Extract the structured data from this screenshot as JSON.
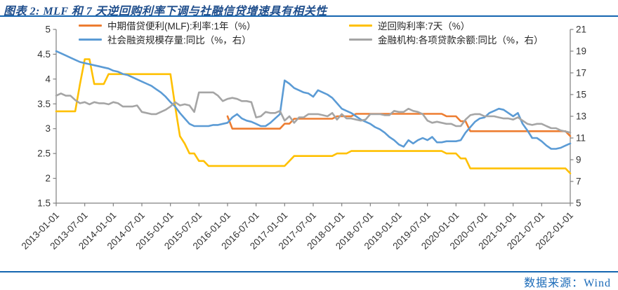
{
  "title": "图表 2: MLF 和 7 天逆回购利率下调与社融信贷增速具有相关性",
  "source": "数据来源：Wind",
  "colors": {
    "title_blue": "#1f4e8c",
    "rule_blue": "#1565b0",
    "source_blue": "#1a6ab8",
    "axis_line": "#808080",
    "axis_text": "#333333"
  },
  "chart_data": {
    "type": "line",
    "title": "图表 2: MLF 和 7 天逆回购利率下调与社融信贷增速具有相关性",
    "legend_position": "top",
    "grid": false,
    "x_start": "2013-01-01",
    "x_end": "2022-01-01",
    "x_months_total": 108,
    "x_tick_labels": [
      "2013-01-01",
      "2013-07-01",
      "2014-01-01",
      "2014-07-01",
      "2015-01-01",
      "2015-07-01",
      "2016-01-01",
      "2016-07-01",
      "2017-01-01",
      "2017-07-01",
      "2018-01-01",
      "2018-07-01",
      "2019-01-01",
      "2019-07-01",
      "2020-01-01",
      "2020-07-01",
      "2021-01-01",
      "2021-07-01",
      "2022-01-01"
    ],
    "left_axis": {
      "min": 1.5,
      "max": 5,
      "step": 0.5,
      "tick_labels": [
        "5",
        "4.5",
        "4",
        "3.5",
        "3",
        "2.5",
        "2",
        "1.5"
      ]
    },
    "right_axis": {
      "min": 5,
      "max": 21,
      "step": 2,
      "tick_labels": [
        "21",
        "19",
        "17",
        "15",
        "13",
        "11",
        "9",
        "7",
        "5"
      ]
    },
    "series": [
      {
        "name": "中期借贷便利(MLF):利率:1年（%）",
        "axis": "left",
        "color": "#ED7D31",
        "start_month": 36,
        "values": [
          3.25,
          3.0,
          3.0,
          3.0,
          3.0,
          3.0,
          3.0,
          3.0,
          3.0,
          3.0,
          3.0,
          3.0,
          3.1,
          3.1,
          3.2,
          3.2,
          3.2,
          3.2,
          3.2,
          3.2,
          3.2,
          3.2,
          3.2,
          3.25,
          3.25,
          3.25,
          3.25,
          3.3,
          3.3,
          3.3,
          3.3,
          3.3,
          3.3,
          3.3,
          3.3,
          3.3,
          3.3,
          3.3,
          3.3,
          3.3,
          3.3,
          3.3,
          3.3,
          3.3,
          3.3,
          3.3,
          3.25,
          3.25,
          3.25,
          3.15,
          3.15,
          2.95,
          2.95,
          2.95,
          2.95,
          2.95,
          2.95,
          2.95,
          2.95,
          2.95,
          2.95,
          2.95,
          2.95,
          2.95,
          2.95,
          2.95,
          2.95,
          2.95,
          2.95,
          2.95,
          2.95,
          2.95,
          2.85
        ]
      },
      {
        "name": "逆回购利率:7天（%）",
        "axis": "left",
        "color": "#FFC000",
        "start_month": 0,
        "values": [
          3.35,
          3.35,
          3.35,
          3.35,
          3.35,
          3.9,
          4.4,
          4.4,
          3.9,
          3.9,
          3.9,
          4.1,
          4.1,
          4.1,
          4.1,
          4.1,
          4.1,
          4.1,
          4.1,
          4.1,
          4.1,
          4.1,
          4.1,
          4.1,
          4.1,
          3.45,
          2.85,
          2.7,
          2.5,
          2.5,
          2.35,
          2.35,
          2.25,
          2.25,
          2.25,
          2.25,
          2.25,
          2.25,
          2.25,
          2.25,
          2.25,
          2.25,
          2.25,
          2.25,
          2.25,
          2.25,
          2.25,
          2.25,
          2.25,
          2.35,
          2.45,
          2.45,
          2.45,
          2.45,
          2.45,
          2.45,
          2.45,
          2.45,
          2.45,
          2.5,
          2.5,
          2.5,
          2.55,
          2.55,
          2.55,
          2.55,
          2.55,
          2.55,
          2.55,
          2.55,
          2.55,
          2.55,
          2.55,
          2.55,
          2.55,
          2.55,
          2.55,
          2.55,
          2.55,
          2.55,
          2.55,
          2.55,
          2.5,
          2.5,
          2.5,
          2.4,
          2.4,
          2.2,
          2.2,
          2.2,
          2.2,
          2.2,
          2.2,
          2.2,
          2.2,
          2.2,
          2.2,
          2.2,
          2.2,
          2.2,
          2.2,
          2.2,
          2.2,
          2.2,
          2.2,
          2.2,
          2.2,
          2.2,
          2.1
        ]
      },
      {
        "name": "社会融资规模存量:同比（%，右）",
        "axis": "right",
        "color": "#5B9BD5",
        "start_month": 0,
        "values": [
          19.0,
          18.8,
          18.6,
          18.4,
          18.2,
          18.0,
          17.9,
          17.8,
          17.7,
          17.6,
          17.5,
          17.4,
          17.2,
          17.1,
          16.9,
          16.8,
          16.6,
          16.4,
          16.2,
          16.0,
          15.8,
          15.5,
          15.2,
          14.8,
          14.3,
          13.9,
          13.3,
          12.8,
          12.3,
          12.1,
          12.1,
          12.1,
          12.1,
          12.2,
          12.2,
          12.3,
          12.4,
          12.9,
          13.2,
          12.8,
          12.6,
          12.5,
          12.3,
          12.1,
          12.1,
          12.4,
          12.8,
          13.2,
          16.3,
          16.0,
          15.6,
          15.4,
          15.2,
          15.1,
          14.8,
          15.4,
          15.2,
          15.0,
          14.7,
          14.2,
          13.7,
          13.5,
          13.3,
          13.0,
          12.7,
          12.5,
          12.3,
          12.0,
          11.8,
          11.5,
          11.1,
          10.8,
          10.4,
          10.2,
          10.8,
          10.5,
          10.8,
          11.0,
          10.8,
          11.1,
          10.6,
          10.6,
          10.7,
          10.7,
          10.7,
          10.8,
          11.5,
          12.0,
          12.5,
          12.8,
          12.9,
          13.3,
          13.5,
          13.7,
          13.6,
          13.3,
          13.0,
          13.3,
          12.3,
          11.7,
          11.0,
          11.0,
          10.7,
          10.3,
          10.0,
          10.0,
          10.1,
          10.3,
          10.5
        ]
      },
      {
        "name": "金融机构:各项贷款余额:同比（%，右）",
        "axis": "right",
        "color": "#A5A5A5",
        "start_month": 0,
        "values": [
          14.9,
          15.1,
          14.9,
          14.9,
          14.5,
          14.2,
          14.3,
          14.1,
          14.3,
          14.2,
          14.2,
          14.1,
          14.3,
          14.2,
          13.9,
          13.9,
          13.9,
          14.0,
          13.4,
          13.3,
          13.2,
          13.2,
          13.4,
          13.6,
          13.9,
          14.3,
          14.0,
          14.1,
          14.0,
          13.4,
          15.2,
          15.2,
          15.2,
          15.2,
          14.9,
          14.4,
          14.6,
          14.7,
          14.6,
          14.4,
          14.4,
          14.3,
          12.9,
          13.0,
          13.4,
          13.3,
          13.3,
          13.5,
          12.6,
          13.0,
          12.4,
          12.9,
          12.9,
          13.2,
          13.2,
          13.2,
          13.1,
          13.0,
          13.3,
          12.7,
          13.2,
          12.8,
          12.8,
          12.7,
          12.6,
          12.7,
          13.2,
          13.2,
          13.2,
          13.1,
          13.1,
          13.5,
          13.4,
          13.4,
          13.7,
          13.5,
          13.4,
          13.2,
          12.6,
          12.4,
          12.5,
          12.4,
          12.3,
          12.3,
          12.1,
          12.1,
          12.7,
          13.1,
          13.2,
          13.2,
          13.0,
          13.0,
          13.0,
          12.9,
          12.8,
          12.8,
          12.7,
          12.9,
          12.6,
          12.3,
          12.2,
          12.3,
          12.3,
          12.1,
          11.9,
          11.9,
          11.7,
          11.6,
          11.5
        ]
      }
    ]
  }
}
